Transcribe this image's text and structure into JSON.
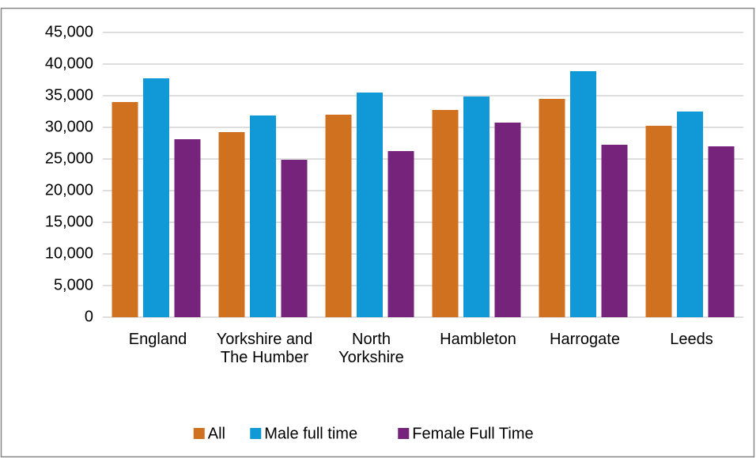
{
  "chart_data": {
    "type": "bar",
    "categories": [
      "England",
      "Yorkshire and The Humber",
      "North Yorkshire",
      "Hambleton",
      "Harrogate",
      "Leeds"
    ],
    "series": [
      {
        "name": "All",
        "color": "#d0711f",
        "values": [
          34000,
          29250,
          32000,
          32750,
          34500,
          30250
        ]
      },
      {
        "name": "Male full time",
        "color": "#1198d6",
        "values": [
          37750,
          31875,
          35500,
          34875,
          38875,
          32500
        ]
      },
      {
        "name": "Female Full Time",
        "color": "#76237c",
        "values": [
          28125,
          24875,
          26250,
          30750,
          27250,
          27000
        ]
      }
    ],
    "ylim": [
      0,
      45000
    ],
    "yticks": [
      0,
      {
        "value": 5000,
        "label": "5,000"
      },
      {
        "value": 10000,
        "label": "10,000"
      },
      {
        "value": 15000,
        "label": "15,000"
      },
      {
        "value": 20000,
        "label": "20,000"
      },
      {
        "value": 25000,
        "label": "25,000"
      },
      {
        "value": 30000,
        "label": "30,000"
      },
      {
        "value": 35000,
        "label": "35,000"
      },
      {
        "value": 40000,
        "label": "40,000"
      },
      {
        "value": 45000,
        "label": "45,000"
      }
    ],
    "grid": true,
    "legend": "bottom"
  }
}
